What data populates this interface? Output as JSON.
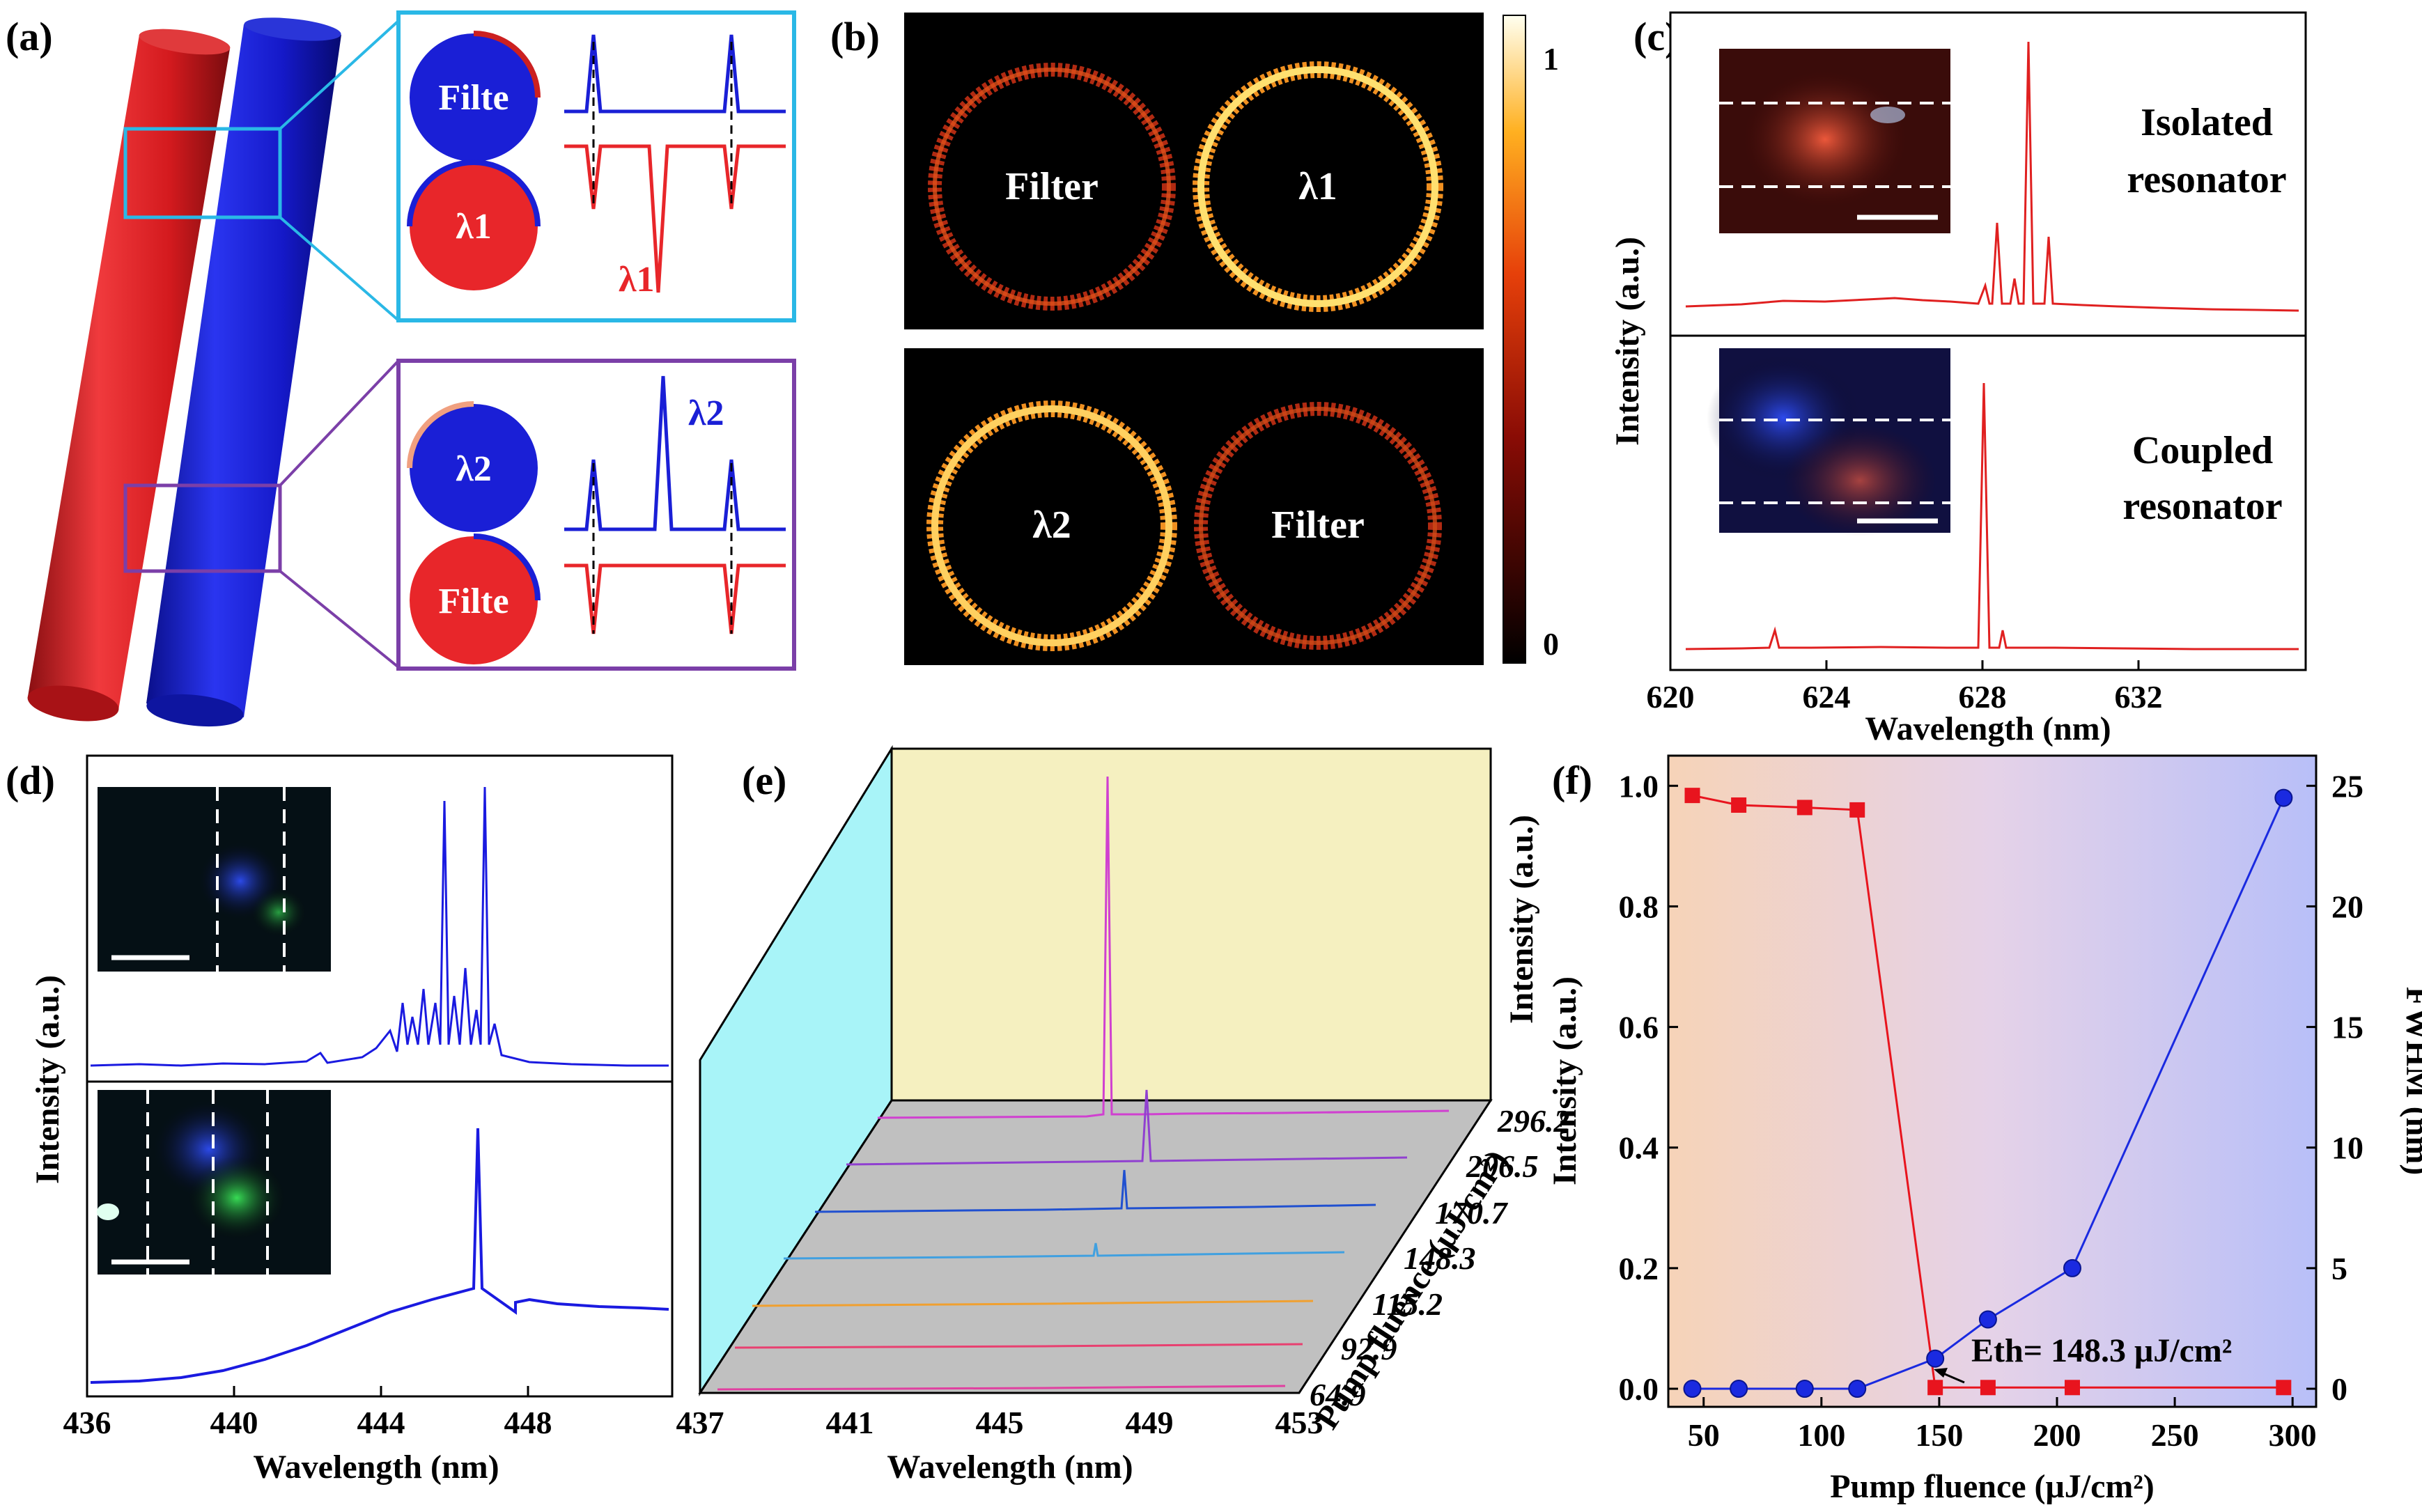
{
  "colors": {
    "red": "#e8262a",
    "blue": "#1a1fd6",
    "cyan_frame": "#2ab8e6",
    "purple_frame": "#7b3fa8",
    "ring_dim": "#c8331a",
    "ring_bright": "#ffd25a",
    "spectrum_red": "#e02020",
    "spectrum_blue": "#1a1ae0",
    "magenta": "#c040c8",
    "e_back_wall": "#f5f0c0",
    "e_side_wall": "#a8f4f8",
    "e_floor": "#c0c0c0"
  },
  "panels": {
    "a": {
      "label": "(a)",
      "top_box": {
        "ring_top": "Filte",
        "ring_bottom": "λ1",
        "red_label": "λ1"
      },
      "bottom_box": {
        "ring_top": "λ2",
        "ring_bottom": "Filte",
        "blue_label": "λ2"
      }
    },
    "b": {
      "label": "(b)",
      "top_ring_left": "Filter",
      "top_ring_right": "λ1",
      "bottom_ring_left": "λ2",
      "bottom_ring_right": "Filter",
      "colorbar_max": "1",
      "colorbar_min": "0"
    },
    "c": {
      "label": "(c)",
      "top_text_1": "Isolated",
      "top_text_2": "resonator",
      "bottom_text_1": "Coupled",
      "bottom_text_2": "resonator",
      "xlabel": "Wavelength (nm)",
      "ylabel": "Intensity (a.u.)",
      "xticks": [
        "620",
        "624",
        "628",
        "632"
      ]
    },
    "d": {
      "label": "(d)",
      "xlabel": "Wavelength (nm)",
      "ylabel": "Intensity (a.u.)",
      "xticks": [
        "436",
        "440",
        "444",
        "448"
      ]
    },
    "e": {
      "label": "(e)",
      "xlabel": "Wavelength (nm)",
      "zlabel": "Intensity (a.u.)",
      "ylabel": "Pump fluence (μJ/cm²)",
      "xticks": [
        "437",
        "441",
        "445",
        "449",
        "453"
      ],
      "fluences": [
        "296.2",
        "206.5",
        "170.7",
        "148.3",
        "115.2",
        "92.9",
        "64.9"
      ]
    },
    "f": {
      "label": "(f)",
      "xlabel": "Pump fluence (μJ/cm²)",
      "ylabel_left": "Intensity (a.u.)",
      "ylabel_right": "FWHM (nm)",
      "annotation": "Eth= 148.3 μJ/cm²",
      "xticks": [
        "50",
        "100",
        "150",
        "200",
        "250",
        "300"
      ],
      "yticks_left": [
        "0.0",
        "0.2",
        "0.4",
        "0.6",
        "0.8",
        "1.0"
      ],
      "yticks_right": [
        "0",
        "5",
        "10",
        "15",
        "20",
        "25"
      ]
    }
  },
  "chart_data": [
    {
      "panel": "f",
      "type": "scatter",
      "xlim": [
        35,
        310
      ],
      "ylim_left": [
        -0.03,
        1.05
      ],
      "ylim_right": [
        -0.75,
        26.25
      ],
      "series": [
        {
          "axis": "right",
          "marker": "square",
          "color": "#e8141e",
          "x": [
            45.2,
            64.9,
            92.9,
            115.2,
            148.3,
            170.7,
            206.5,
            296.2
          ],
          "y": [
            24.6,
            24.2,
            24.1,
            24.0,
            0.05,
            0.05,
            0.05,
            0.05
          ]
        },
        {
          "axis": "left",
          "marker": "circle",
          "color": "#1a2ae0",
          "x": [
            45.2,
            64.9,
            92.9,
            115.2,
            148.3,
            170.7,
            206.5,
            296.2
          ],
          "y": [
            0.0,
            0.0,
            0.0,
            0.0,
            0.05,
            0.115,
            0.2,
            0.98
          ]
        }
      ]
    }
  ]
}
